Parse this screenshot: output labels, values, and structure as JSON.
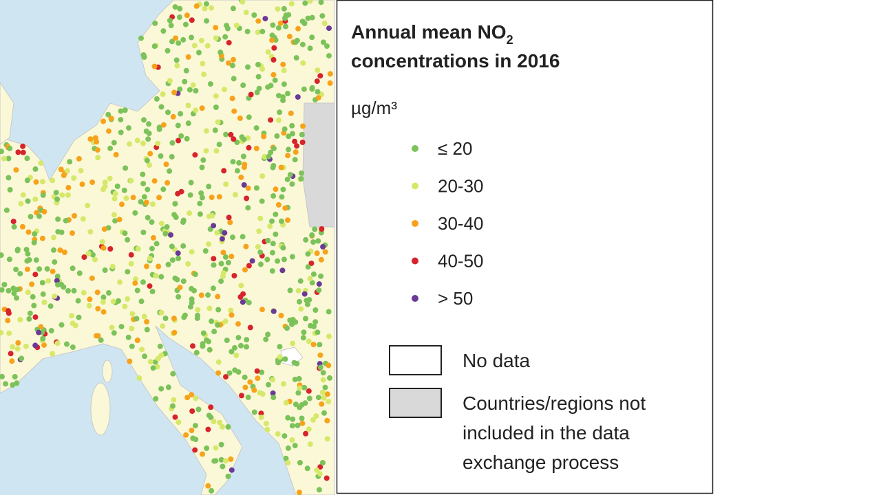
{
  "legend": {
    "title": {
      "text": "Annual mean NO",
      "subscript": "2",
      "line2": "concentrations in 2016"
    },
    "unit": "µg/m³",
    "classes": [
      {
        "label": "≤ 20",
        "color": "#7cc25a"
      },
      {
        "label": "20-30",
        "color": "#d6e86a"
      },
      {
        "label": "30-40",
        "color": "#f7a21b"
      },
      {
        "label": "40-50",
        "color": "#d7242c"
      },
      {
        "label": "> 50",
        "color": "#6a3a96"
      }
    ],
    "areas": [
      {
        "lines": [
          "No data"
        ],
        "color": "#ffffff"
      },
      {
        "lines": [
          "Countries/regions not",
          "included in the data",
          "exchange process"
        ],
        "color": "#d9d9d9"
      }
    ]
  }
}
